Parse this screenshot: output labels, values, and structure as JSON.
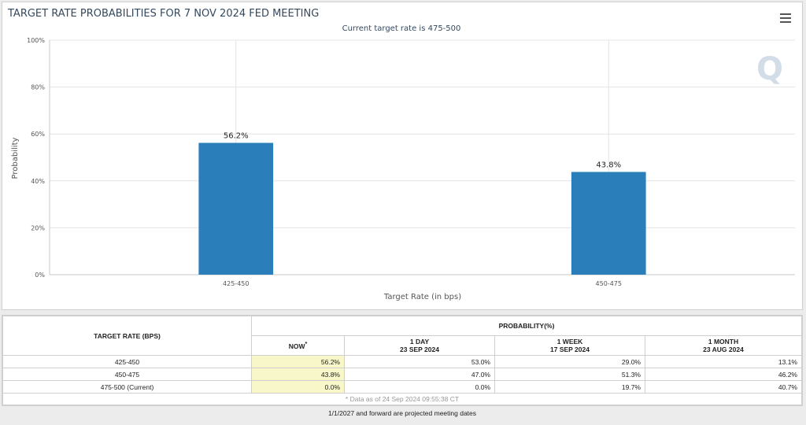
{
  "chart_data": {
    "type": "bar",
    "title": "TARGET RATE PROBABILITIES FOR 7 NOV 2024 FED MEETING",
    "subtitle": "Current target rate is 475-500",
    "categories": [
      "425-450",
      "450-475"
    ],
    "values": [
      56.2,
      43.8
    ],
    "data_labels": [
      "56.2%",
      "43.8%"
    ],
    "xlabel": "Target Rate (in bps)",
    "ylabel": "Probability",
    "ylim": [
      0,
      100
    ],
    "yticks": [
      "0%",
      "20%",
      "40%",
      "60%",
      "80%",
      "100%"
    ],
    "color": "#2a7fba",
    "grid": true
  },
  "table": {
    "col_rate": "TARGET RATE (BPS)",
    "col_prob": "PROBABILITY(%)",
    "now": "NOW",
    "now_mark": "*",
    "day_label": "1 DAY",
    "day_date": "23 SEP 2024",
    "week_label": "1 WEEK",
    "week_date": "17 SEP 2024",
    "month_label": "1 MONTH",
    "month_date": "23 AUG 2024",
    "rows": [
      {
        "rate": "425-450",
        "now": "56.2%",
        "day": "53.0%",
        "week": "29.0%",
        "month": "13.1%"
      },
      {
        "rate": "450-475",
        "now": "43.8%",
        "day": "47.0%",
        "week": "51.3%",
        "month": "46.2%"
      },
      {
        "rate": "475-500 (Current)",
        "now": "0.0%",
        "day": "0.0%",
        "week": "19.7%",
        "month": "40.7%"
      }
    ],
    "note": "* Data as of 24 Sep 2024 09:55:38 CT"
  },
  "footer": "1/1/2027 and forward are projected meeting dates"
}
